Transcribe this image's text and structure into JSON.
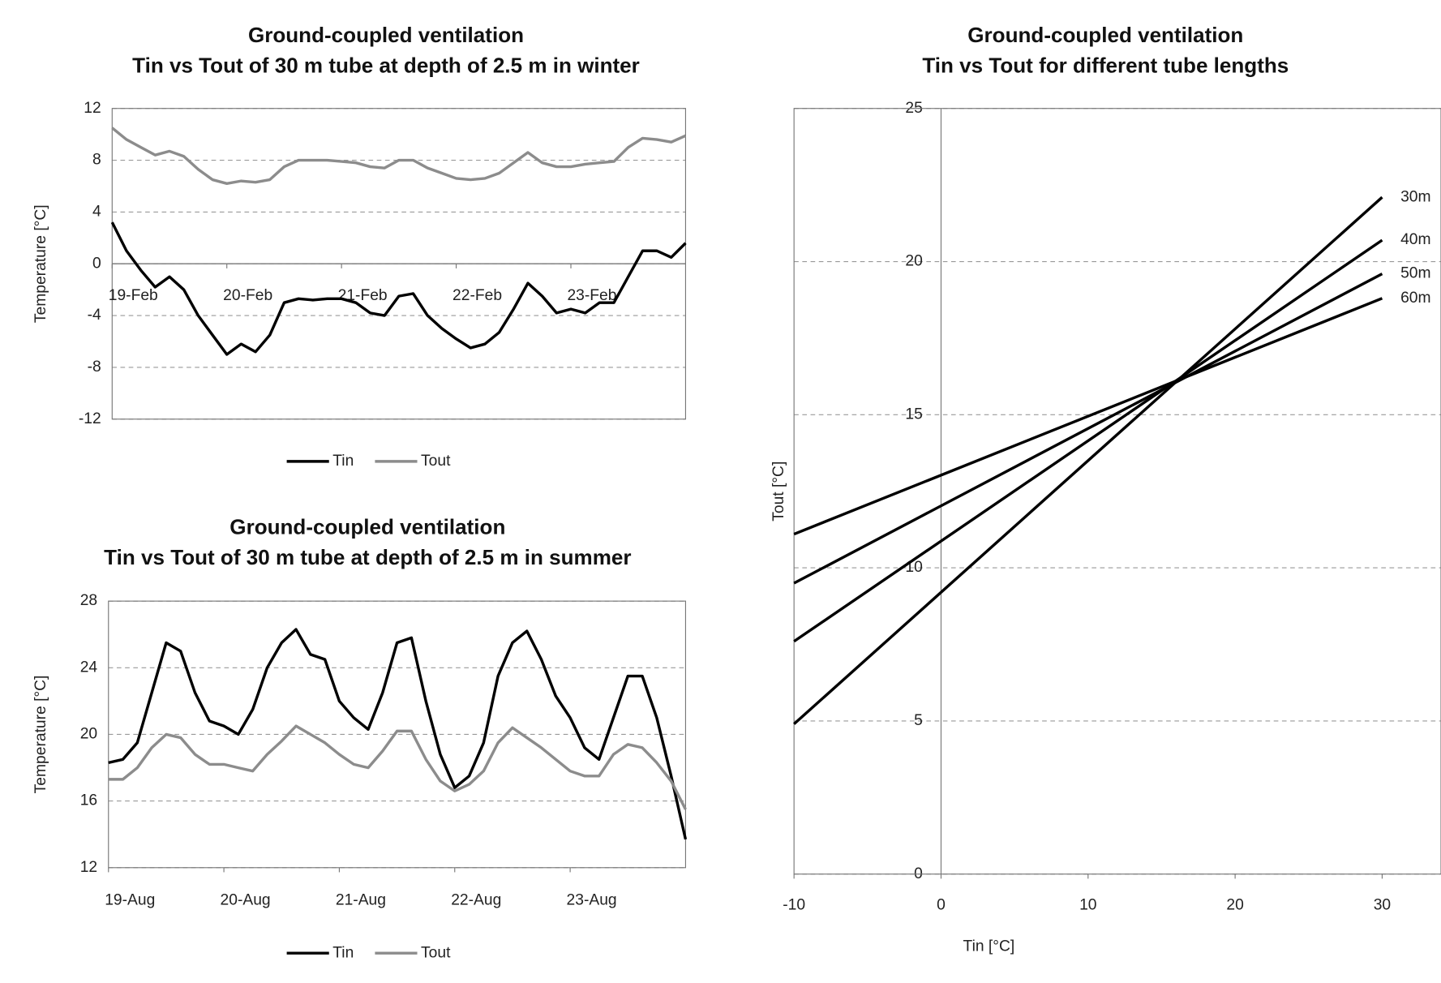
{
  "chart_data": [
    {
      "type": "line",
      "title": "Ground-coupled ventilation",
      "subtitle": "Tin vs Tout of 30 m tube at depth of 2.5 m in winter",
      "y_label": "Temperature [°C]",
      "categories": [
        "19-Feb",
        null,
        null,
        null,
        null,
        null,
        null,
        null,
        "20-Feb",
        null,
        null,
        null,
        null,
        null,
        null,
        null,
        "21-Feb",
        null,
        null,
        null,
        null,
        null,
        null,
        null,
        "22-Feb",
        null,
        null,
        null,
        null,
        null,
        null,
        null,
        "23-Feb",
        null,
        null,
        null,
        null,
        null,
        null,
        null,
        null
      ],
      "series": [
        {
          "name": "Tin",
          "color": "#000000",
          "values": [
            3.2,
            1.0,
            -0.5,
            -1.8,
            -1.0,
            -2.0,
            -4.0,
            -5.5,
            -7.0,
            -6.2,
            -6.8,
            -5.5,
            -3.0,
            -2.7,
            -2.8,
            -2.7,
            -2.7,
            -3.0,
            -3.8,
            -4.0,
            -2.5,
            -2.3,
            -4.0,
            -5.0,
            -5.8,
            -6.5,
            -6.2,
            -5.3,
            -3.5,
            -1.5,
            -2.5,
            -3.8,
            -3.5,
            -3.8,
            -3.0,
            -3.0,
            -1.0,
            1.0,
            1.0,
            0.5,
            1.6
          ]
        },
        {
          "name": "Tout",
          "color": "#8c8c8c",
          "values": [
            10.5,
            9.6,
            9.0,
            8.4,
            8.7,
            8.3,
            7.3,
            6.5,
            6.2,
            6.4,
            6.3,
            6.5,
            7.5,
            8.0,
            8.0,
            8.0,
            7.9,
            7.8,
            7.5,
            7.4,
            8.0,
            8.0,
            7.4,
            7.0,
            6.6,
            6.5,
            6.6,
            7.0,
            7.8,
            8.6,
            7.8,
            7.5,
            7.5,
            7.7,
            7.8,
            7.9,
            9.0,
            9.7,
            9.6,
            9.4,
            9.9
          ]
        }
      ],
      "ylim": [
        -12,
        12
      ],
      "yticks": [
        -12,
        -8,
        -4,
        0,
        4,
        8,
        12
      ],
      "xaxis_crosses": 0,
      "grid": true,
      "legend": "bottom"
    },
    {
      "type": "line",
      "title": "Ground-coupled ventilation",
      "subtitle": "Tin vs Tout of 30 m tube at depth of 2.5 m in summer",
      "y_label": "Temperature [°C]",
      "categories": [
        "19-Aug",
        null,
        null,
        null,
        null,
        null,
        null,
        null,
        "20-Aug",
        null,
        null,
        null,
        null,
        null,
        null,
        null,
        "21-Aug",
        null,
        null,
        null,
        null,
        null,
        null,
        null,
        "22-Aug",
        null,
        null,
        null,
        null,
        null,
        null,
        null,
        "23-Aug",
        null,
        null,
        null,
        null,
        null,
        null,
        null,
        null
      ],
      "series": [
        {
          "name": "Tin",
          "color": "#000000",
          "values": [
            18.3,
            18.5,
            19.5,
            22.5,
            25.5,
            25.0,
            22.5,
            20.8,
            20.5,
            20.0,
            21.5,
            24.0,
            25.5,
            26.3,
            24.8,
            24.5,
            22.0,
            21.0,
            20.3,
            22.5,
            25.5,
            25.8,
            22.0,
            18.8,
            16.8,
            17.5,
            19.5,
            23.5,
            25.5,
            26.2,
            24.5,
            22.3,
            21.0,
            19.2,
            18.5,
            21.0,
            23.5,
            23.5,
            21.0,
            17.5,
            13.7
          ]
        },
        {
          "name": "Tout",
          "color": "#8c8c8c",
          "values": [
            17.3,
            17.3,
            18.0,
            19.2,
            20.0,
            19.8,
            18.8,
            18.2,
            18.2,
            18.0,
            17.8,
            18.8,
            19.6,
            20.5,
            20.0,
            19.5,
            18.8,
            18.2,
            18.0,
            19.0,
            20.2,
            20.2,
            18.5,
            17.2,
            16.6,
            17.0,
            17.8,
            19.5,
            20.4,
            19.8,
            19.2,
            18.5,
            17.8,
            17.5,
            17.5,
            18.8,
            19.4,
            19.2,
            18.3,
            17.2,
            15.5
          ]
        }
      ],
      "ylim": [
        12,
        28
      ],
      "yticks": [
        12,
        16,
        20,
        24,
        28
      ],
      "grid": true,
      "legend": "bottom"
    },
    {
      "type": "line",
      "title": "Ground-coupled ventilation",
      "subtitle": "Tin vs Tout for different tube lengths",
      "x_label": "Tin [°C]",
      "y_label": "Tout [°C]",
      "x": [
        -10,
        30
      ],
      "series": [
        {
          "name": "30m",
          "color": "#000000",
          "values": [
            4.9,
            22.1
          ]
        },
        {
          "name": "40m",
          "color": "#000000",
          "values": [
            7.6,
            20.7
          ]
        },
        {
          "name": "50m",
          "color": "#000000",
          "values": [
            9.5,
            19.6
          ]
        },
        {
          "name": "60m",
          "color": "#000000",
          "values": [
            11.1,
            18.8
          ]
        }
      ],
      "xlim": [
        -10,
        34
      ],
      "xticks": [
        -10,
        0,
        10,
        20,
        30
      ],
      "ylim": [
        0,
        25
      ],
      "yticks": [
        0,
        5,
        10,
        15,
        20,
        25
      ],
      "yaxis_crosses": 0,
      "grid": true,
      "legend": "line-end"
    }
  ]
}
